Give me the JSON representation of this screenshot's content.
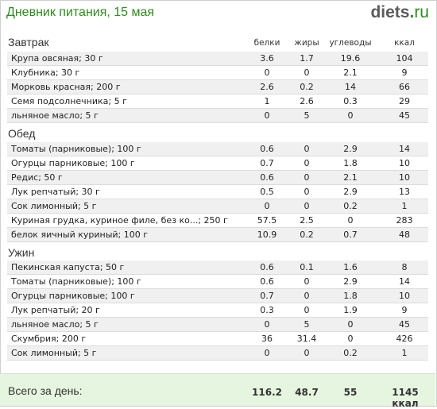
{
  "header": {
    "title": "Дневник питания, 15 мая",
    "logo_main": "diets",
    "logo_dot": ".",
    "logo_tld": "ru"
  },
  "columns": {
    "protein": "белки",
    "fat": "жиры",
    "carbs": "углеводы",
    "kcal": "ккал"
  },
  "meals": [
    {
      "title": "Завтрак",
      "items": [
        {
          "name": "Крупа овсяная; 30 г",
          "p": "3.6",
          "f": "1.7",
          "c": "19.6",
          "k": "104"
        },
        {
          "name": "Клубника; 30 г",
          "p": "0",
          "f": "0",
          "c": "2.1",
          "k": "9"
        },
        {
          "name": "Морковь красная; 200 г",
          "p": "2.6",
          "f": "0.2",
          "c": "14",
          "k": "66"
        },
        {
          "name": "Семя подсолнечника; 5 г",
          "p": "1",
          "f": "2.6",
          "c": "0.3",
          "k": "29"
        },
        {
          "name": "льняное масло; 5 г",
          "p": "0",
          "f": "5",
          "c": "0",
          "k": "45"
        }
      ]
    },
    {
      "title": "Обед",
      "items": [
        {
          "name": "Томаты (парниковые); 100 г",
          "p": "0.6",
          "f": "0",
          "c": "2.9",
          "k": "14"
        },
        {
          "name": "Огурцы парниковые; 100 г",
          "p": "0.7",
          "f": "0",
          "c": "1.8",
          "k": "10"
        },
        {
          "name": "Редис; 50 г",
          "p": "0.6",
          "f": "0",
          "c": "2.1",
          "k": "10"
        },
        {
          "name": "Лук репчатый; 30 г",
          "p": "0.5",
          "f": "0",
          "c": "2.9",
          "k": "13"
        },
        {
          "name": "Сок лимонный; 5 г",
          "p": "0",
          "f": "0",
          "c": "0.2",
          "k": "1"
        },
        {
          "name": "Куриная грудка, куриное филе, без ко...; 250 г",
          "p": "57.5",
          "f": "2.5",
          "c": "0",
          "k": "283"
        },
        {
          "name": "белок яичный куриный; 100 г",
          "p": "10.9",
          "f": "0.2",
          "c": "0.7",
          "k": "48"
        }
      ]
    },
    {
      "title": "Ужин",
      "items": [
        {
          "name": "Пекинская капуста; 50 г",
          "p": "0.6",
          "f": "0.1",
          "c": "1.6",
          "k": "8"
        },
        {
          "name": "Томаты (парниковые); 100 г",
          "p": "0.6",
          "f": "0",
          "c": "2.9",
          "k": "14"
        },
        {
          "name": "Огурцы парниковые; 100 г",
          "p": "0.7",
          "f": "0",
          "c": "1.8",
          "k": "10"
        },
        {
          "name": "Лук репчатый; 20 г",
          "p": "0.3",
          "f": "0",
          "c": "1.9",
          "k": "9"
        },
        {
          "name": "льняное масло; 5 г",
          "p": "0",
          "f": "5",
          "c": "0",
          "k": "45"
        },
        {
          "name": "Скумбрия; 200 г",
          "p": "36",
          "f": "31.4",
          "c": "0",
          "k": "426"
        },
        {
          "name": "Сок лимонный; 5 г",
          "p": "0",
          "f": "0",
          "c": "0.2",
          "k": "1"
        }
      ]
    }
  ],
  "total": {
    "label": "Всего за день:",
    "p": "116.2",
    "f": "48.7",
    "c": "55",
    "k": "1145 ккал"
  },
  "colors": {
    "title_green": "#2e8b1e",
    "total_bg": "#e6f5df",
    "row_alt_bg": "#f0f0f0"
  }
}
